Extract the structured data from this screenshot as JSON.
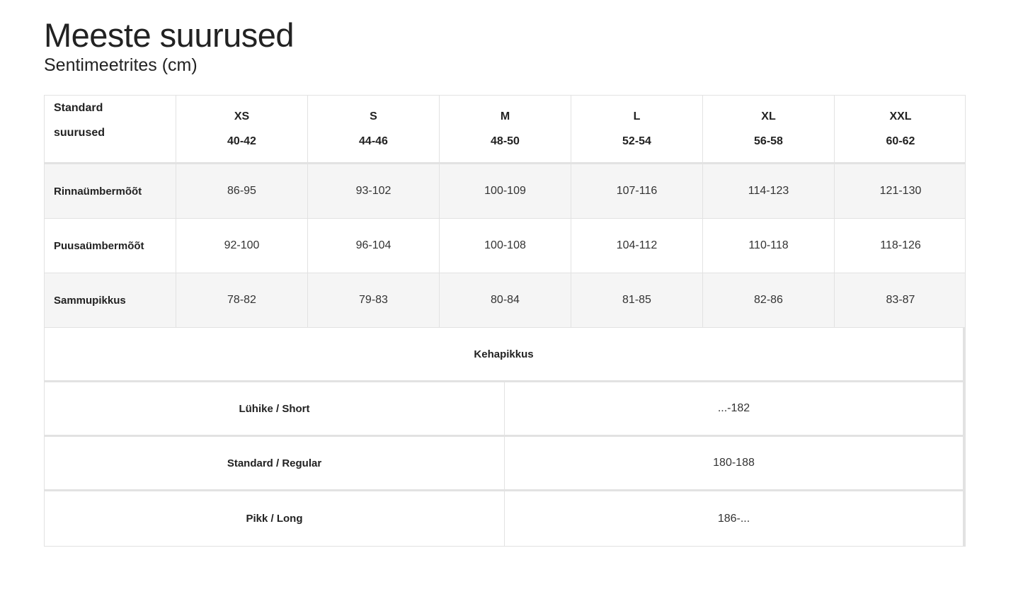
{
  "title": "Meeste suurused",
  "subtitle": "Sentimeetrites (cm)",
  "size_table": {
    "header": {
      "label_line1": "Standard",
      "label_line2": "suurused",
      "sizes": [
        {
          "size": "XS",
          "eu": "40-42"
        },
        {
          "size": "S",
          "eu": "44-46"
        },
        {
          "size": "M",
          "eu": "48-50"
        },
        {
          "size": "L",
          "eu": "52-54"
        },
        {
          "size": "XL",
          "eu": "56-58"
        },
        {
          "size": "XXL",
          "eu": "60-62"
        }
      ]
    },
    "rows": [
      {
        "label": "Rinnaümbermõõt",
        "values": [
          "86-95",
          "93-102",
          "100-109",
          "107-116",
          "114-123",
          "121-130"
        ]
      },
      {
        "label": "Puusaümbermõõt",
        "values": [
          "92-100",
          "96-104",
          "100-108",
          "104-112",
          "110-118",
          "118-126"
        ]
      },
      {
        "label": "Sammupikkus",
        "values": [
          "78-82",
          "79-83",
          "80-84",
          "81-85",
          "82-86",
          "83-87"
        ]
      }
    ]
  },
  "height_table": {
    "heading": "Kehapikkus",
    "rows": [
      {
        "label": "Lühike / Short",
        "value": "...-182"
      },
      {
        "label": "Standard / Regular",
        "value": "180-188"
      },
      {
        "label": "Pikk / Long",
        "value": "186-..."
      }
    ]
  }
}
